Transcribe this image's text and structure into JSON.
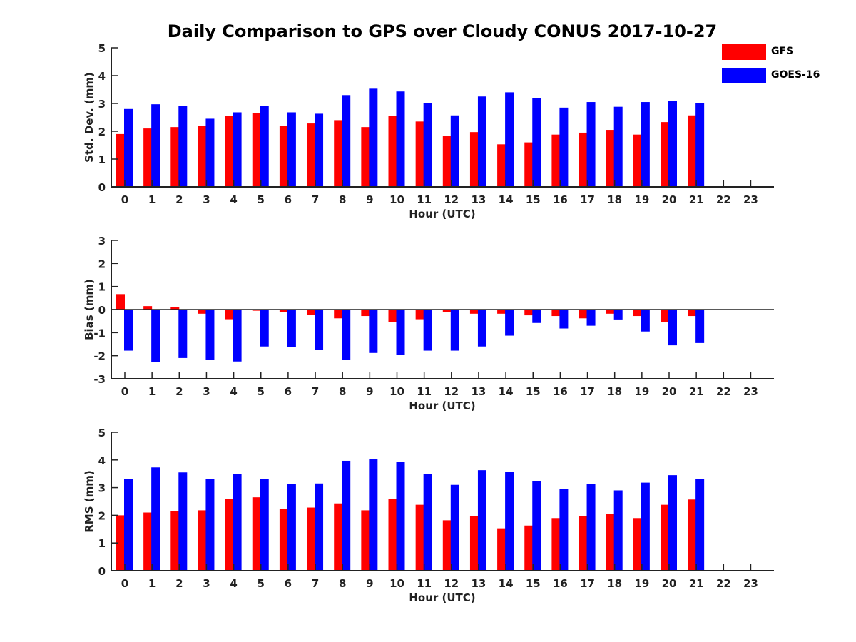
{
  "title": "Daily Comparison to GPS over Cloudy CONUS 2017-10-27",
  "legend": [
    {
      "label": "GFS",
      "color": "#ff0000"
    },
    {
      "label": "GOES-16",
      "color": "#0000ff"
    }
  ],
  "chart_data": [
    {
      "type": "bar",
      "title": "Daily Comparison to GPS over Cloudy CONUS 2017-10-27",
      "xlabel": "Hour (UTC)",
      "ylabel": "Std. Dev. (mm)",
      "ylim": [
        0,
        5
      ],
      "yticks": [
        "0",
        "1",
        "2",
        "3",
        "4",
        "5"
      ],
      "categories": [
        "0",
        "1",
        "2",
        "3",
        "4",
        "5",
        "6",
        "7",
        "8",
        "9",
        "10",
        "11",
        "12",
        "13",
        "14",
        "15",
        "16",
        "17",
        "18",
        "19",
        "20",
        "21",
        "22",
        "23"
      ],
      "series": [
        {
          "name": "GFS",
          "color": "#ff0000",
          "values": [
            1.9,
            2.1,
            2.15,
            2.18,
            2.55,
            2.65,
            2.2,
            2.28,
            2.4,
            2.15,
            2.55,
            2.35,
            1.82,
            1.97,
            1.53,
            1.6,
            1.88,
            1.95,
            2.05,
            1.88,
            2.33,
            2.57,
            null,
            null
          ]
        },
        {
          "name": "GOES-16",
          "color": "#0000ff",
          "values": [
            2.8,
            2.97,
            2.9,
            2.45,
            2.68,
            2.92,
            2.68,
            2.63,
            3.3,
            3.53,
            3.43,
            3.0,
            2.57,
            3.25,
            3.4,
            3.18,
            2.85,
            3.05,
            2.88,
            3.05,
            3.1,
            3.0,
            null,
            null
          ]
        }
      ]
    },
    {
      "type": "bar",
      "xlabel": "Hour (UTC)",
      "ylabel": "Bias (mm)",
      "ylim": [
        -3,
        3
      ],
      "yticks": [
        "-3",
        "-2",
        "-1",
        "0",
        "1",
        "2",
        "3"
      ],
      "categories": [
        "0",
        "1",
        "2",
        "3",
        "4",
        "5",
        "6",
        "7",
        "8",
        "9",
        "10",
        "11",
        "12",
        "13",
        "14",
        "15",
        "16",
        "17",
        "18",
        "19",
        "20",
        "21",
        "22",
        "23"
      ],
      "series": [
        {
          "name": "GFS",
          "color": "#ff0000",
          "values": [
            0.67,
            0.15,
            0.12,
            -0.18,
            -0.42,
            -0.05,
            -0.12,
            -0.22,
            -0.38,
            -0.28,
            -0.55,
            -0.42,
            -0.1,
            -0.18,
            -0.18,
            -0.25,
            -0.28,
            -0.38,
            -0.18,
            -0.28,
            -0.55,
            -0.28,
            null,
            null
          ]
        },
        {
          "name": "GOES-16",
          "color": "#0000ff",
          "values": [
            -1.78,
            -2.27,
            -2.1,
            -2.18,
            -2.25,
            -1.6,
            -1.62,
            -1.75,
            -2.18,
            -1.88,
            -1.95,
            -1.78,
            -1.78,
            -1.6,
            -1.13,
            -0.58,
            -0.82,
            -0.7,
            -0.43,
            -0.95,
            -1.55,
            -1.45,
            null,
            null
          ]
        }
      ]
    },
    {
      "type": "bar",
      "xlabel": "Hour (UTC)",
      "ylabel": "RMS (mm)",
      "ylim": [
        0,
        5
      ],
      "yticks": [
        "0",
        "1",
        "2",
        "3",
        "4",
        "5"
      ],
      "categories": [
        "0",
        "1",
        "2",
        "3",
        "4",
        "5",
        "6",
        "7",
        "8",
        "9",
        "10",
        "11",
        "12",
        "13",
        "14",
        "15",
        "16",
        "17",
        "18",
        "19",
        "20",
        "21",
        "22",
        "23"
      ],
      "series": [
        {
          "name": "GFS",
          "color": "#ff0000",
          "values": [
            2.0,
            2.1,
            2.15,
            2.18,
            2.58,
            2.65,
            2.22,
            2.28,
            2.43,
            2.18,
            2.6,
            2.38,
            1.82,
            1.97,
            1.53,
            1.63,
            1.9,
            1.97,
            2.05,
            1.9,
            2.38,
            2.57,
            null,
            null
          ]
        },
        {
          "name": "GOES-16",
          "color": "#0000ff",
          "values": [
            3.3,
            3.73,
            3.55,
            3.3,
            3.5,
            3.32,
            3.13,
            3.15,
            3.97,
            4.02,
            3.93,
            3.5,
            3.1,
            3.63,
            3.57,
            3.23,
            2.95,
            3.13,
            2.9,
            3.18,
            3.45,
            3.32,
            null,
            null
          ]
        }
      ]
    }
  ]
}
